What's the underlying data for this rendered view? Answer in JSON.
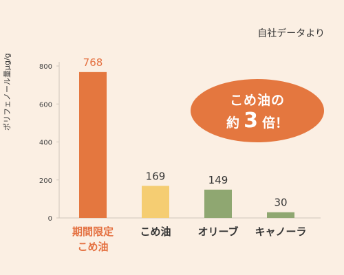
{
  "source_note": "自社データより",
  "badge": {
    "line1": "こめ油の",
    "prefix": "約",
    "number": "3",
    "suffix": "倍！",
    "color": "#e4773f"
  },
  "chart_data": {
    "type": "bar",
    "ylabel": "ポリフェノール量μg/g",
    "ylim": [
      0,
      800
    ],
    "yticks": [
      0,
      200,
      400,
      600,
      800
    ],
    "categories": [
      {
        "lines": [
          "期間限定",
          "こめ油"
        ],
        "color": "#e47040"
      },
      {
        "lines": [
          "こめ油"
        ],
        "color": "#333333"
      },
      {
        "lines": [
          "オリーブ"
        ],
        "color": "#333333"
      },
      {
        "lines": [
          "キャノーラ"
        ],
        "color": "#333333"
      }
    ],
    "values": [
      768,
      169,
      149,
      30
    ],
    "value_labels": [
      "768",
      "169",
      "149",
      "30"
    ],
    "label_colors": [
      "#e47040",
      "#333333",
      "#333333",
      "#333333"
    ],
    "bar_colors": [
      "#e4773f",
      "#f5cd72",
      "#8fa771",
      "#8fa771"
    ]
  }
}
